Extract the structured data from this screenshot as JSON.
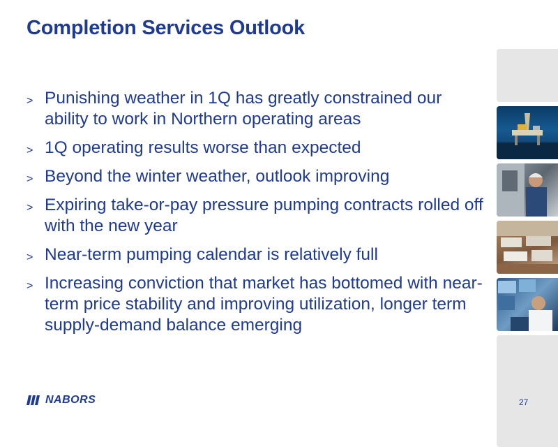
{
  "slide": {
    "title": "Completion Services Outlook",
    "bullet_marker": ">",
    "bullets": [
      "Punishing weather in 1Q has greatly constrained our ability to work in Northern operating areas",
      "1Q operating results worse than expected",
      "Beyond the winter weather, outlook improving",
      "Expiring take-or-pay pressure pumping contracts rolled off with the new year",
      "Near-term pumping calendar is relatively full",
      "Increasing conviction that market has bottomed with near-term price stability and improving utilization, longer term supply-demand balance emerging"
    ],
    "page_number": "27"
  },
  "logo": {
    "text": "NABORS"
  },
  "colors": {
    "accent": "#1f3a93",
    "tile_gray": "#e6e6e6"
  },
  "image_strip": [
    {
      "kind": "gray-panel"
    },
    {
      "kind": "photo-offshore-rig"
    },
    {
      "kind": "photo-worker"
    },
    {
      "kind": "photo-equipment-yard"
    },
    {
      "kind": "photo-control-room"
    },
    {
      "kind": "gray-panel"
    }
  ]
}
